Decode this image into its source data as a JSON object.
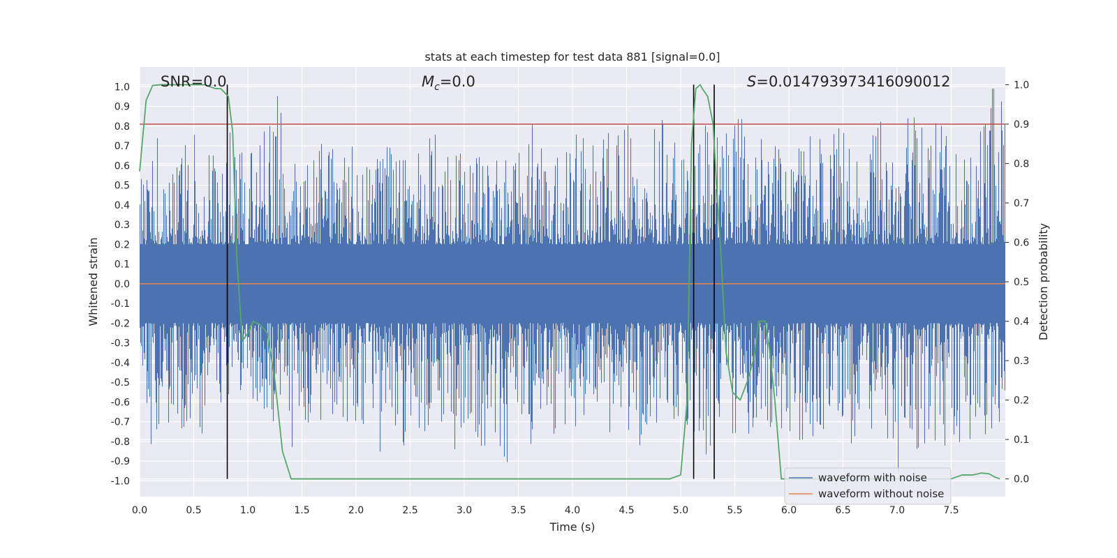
{
  "chart_data": {
    "type": "line",
    "title": "stats at each timestep for test data 881 [signal=0.0]",
    "xlabel": "Time (s)",
    "ylabel": "Whitened strain",
    "y2label": "Detection probability",
    "xlim": [
      0.0,
      8.0
    ],
    "ylim": [
      -1.08,
      1.1
    ],
    "y2lim": [
      -0.045,
      1.045
    ],
    "xticks": [
      0.0,
      0.5,
      1.0,
      1.5,
      2.0,
      2.5,
      3.0,
      3.5,
      4.0,
      4.5,
      5.0,
      5.5,
      6.0,
      6.5,
      7.0,
      7.5
    ],
    "yticks": [
      -1.0,
      -0.9,
      -0.8,
      -0.7,
      -0.6,
      -0.5,
      -0.4,
      -0.3,
      -0.2,
      -0.1,
      0.0,
      0.1,
      0.2,
      0.3,
      0.4,
      0.5,
      0.6,
      0.7,
      0.8,
      0.9,
      1.0
    ],
    "y2ticks": [
      0.0,
      0.1,
      0.2,
      0.3,
      0.4,
      0.5,
      0.6,
      0.7,
      0.8,
      0.9,
      1.0
    ],
    "grid": true,
    "legend_position": "bottom-right",
    "series": [
      {
        "name": "waveform with noise",
        "color": "#4c72b0",
        "axis": "left",
        "envelope_x": [
          0.0,
          0.125,
          0.25,
          0.375,
          0.5,
          0.625,
          0.75,
          0.875,
          1.0,
          1.125,
          1.25,
          1.375,
          1.5,
          1.625,
          1.75,
          1.875,
          2.0,
          2.125,
          2.25,
          2.375,
          2.5,
          2.625,
          2.75,
          2.875,
          3.0,
          3.125,
          3.25,
          3.375,
          3.5,
          3.625,
          3.75,
          3.875,
          4.0,
          4.125,
          4.25,
          4.375,
          4.5,
          4.625,
          4.75,
          4.875,
          5.0,
          5.125,
          5.25,
          5.375,
          5.5,
          5.625,
          5.75,
          5.875,
          6.0,
          6.125,
          6.25,
          6.375,
          6.5,
          6.625,
          6.75,
          6.875,
          7.0,
          7.125,
          7.25,
          7.375,
          7.5,
          7.625,
          7.75,
          7.875
        ],
        "envelope_max": [
          0.62,
          0.81,
          0.62,
          0.68,
          0.84,
          0.66,
          0.7,
          0.86,
          0.64,
          0.73,
          1.0,
          0.75,
          0.68,
          0.76,
          0.7,
          0.64,
          0.72,
          0.66,
          0.7,
          0.68,
          0.72,
          0.7,
          0.86,
          0.68,
          0.66,
          0.7,
          0.68,
          0.72,
          0.66,
          0.86,
          0.7,
          0.68,
          0.72,
          0.85,
          0.7,
          0.84,
          0.8,
          0.84,
          0.78,
          0.86,
          0.64,
          0.62,
          0.84,
          0.72,
          0.86,
          0.86,
          0.8,
          0.74,
          0.72,
          0.78,
          0.74,
          0.72,
          0.84,
          0.8,
          0.74,
          0.86,
          0.76,
          0.86,
          0.8,
          0.86,
          0.7,
          0.68,
          0.74,
          0.99
        ],
        "envelope_min": [
          -0.55,
          -0.86,
          -0.76,
          -0.72,
          -0.82,
          -0.73,
          -0.6,
          -0.72,
          -0.62,
          -0.78,
          -0.75,
          -0.8,
          -0.9,
          -0.72,
          -0.8,
          -0.7,
          -0.75,
          -0.68,
          -0.9,
          -0.86,
          -0.8,
          -0.76,
          -0.7,
          -0.92,
          -0.7,
          -0.8,
          -0.9,
          -0.96,
          -0.72,
          -0.82,
          -0.84,
          -0.76,
          -0.7,
          -0.8,
          -0.93,
          -0.72,
          -0.76,
          -0.82,
          -0.7,
          -0.72,
          -0.68,
          -0.75,
          -0.9,
          -0.64,
          -0.78,
          -0.76,
          -0.8,
          -0.74,
          -0.76,
          -0.8,
          -0.78,
          -0.72,
          -0.76,
          -0.84,
          -0.74,
          -0.7,
          -0.98,
          -0.86,
          -0.96,
          -0.8,
          -0.84,
          -0.78,
          -0.8,
          -0.76
        ]
      },
      {
        "name": "waveform without noise",
        "color": "#dd8452",
        "axis": "left",
        "x": [
          0.0,
          8.0
        ],
        "y": [
          0.0,
          0.0
        ]
      },
      {
        "color": "#55a868",
        "axis": "right",
        "x": [
          0.0,
          0.06,
          0.12,
          0.2,
          0.3,
          0.4,
          0.5,
          0.6,
          0.7,
          0.75,
          0.82,
          0.86,
          0.9,
          0.95,
          1.0,
          1.05,
          1.12,
          1.18,
          1.25,
          1.32,
          1.4,
          1.45,
          1.5,
          1.6,
          2.0,
          2.5,
          3.0,
          3.5,
          4.0,
          4.5,
          4.9,
          5.0,
          5.06,
          5.1,
          5.14,
          5.18,
          5.2,
          5.25,
          5.3,
          5.33,
          5.37,
          5.42,
          5.48,
          5.55,
          5.62,
          5.68,
          5.72,
          5.78,
          5.82,
          5.87,
          5.93,
          6.0,
          6.1,
          6.2,
          6.5,
          7.0,
          7.5,
          7.6,
          7.7,
          7.78,
          7.85,
          7.9,
          7.95
        ],
        "y": [
          0.78,
          0.96,
          0.998,
          1.0,
          1.0,
          1.0,
          1.0,
          1.0,
          0.99,
          0.99,
          0.97,
          0.88,
          0.55,
          0.35,
          0.37,
          0.4,
          0.39,
          0.37,
          0.25,
          0.07,
          0.0,
          0.0,
          0.0,
          0.0,
          0.0,
          0.0,
          0.0,
          0.0,
          0.0,
          0.0,
          0.0,
          0.01,
          0.2,
          0.85,
          0.99,
          1.0,
          0.99,
          0.97,
          0.9,
          0.75,
          0.58,
          0.32,
          0.22,
          0.2,
          0.25,
          0.31,
          0.4,
          0.4,
          0.33,
          0.2,
          0.0,
          0.0,
          0.0,
          0.0,
          0.0,
          0.0,
          0.0,
          0.01,
          0.01,
          0.015,
          0.013,
          0.005,
          0.0
        ]
      }
    ],
    "hlines": [
      {
        "axis": "right",
        "value": 0.9,
        "color": "#c44e52"
      }
    ],
    "vlines": [
      {
        "x": 0.81,
        "ymin": 0.0,
        "ymax": 1.0,
        "color": "#000000"
      },
      {
        "x": 5.12,
        "ymin": 0.0,
        "ymax": 1.0,
        "color": "#000000"
      },
      {
        "x": 5.31,
        "ymin": 0.0,
        "ymax": 1.0,
        "color": "#000000"
      }
    ],
    "annotations": {
      "snr": "SNR=0.0",
      "mc_symbol": "M",
      "mc_sub": "c",
      "mc_value": "=0.0",
      "s_symbol": "S",
      "s_value": "=0.014793973416090012"
    }
  }
}
